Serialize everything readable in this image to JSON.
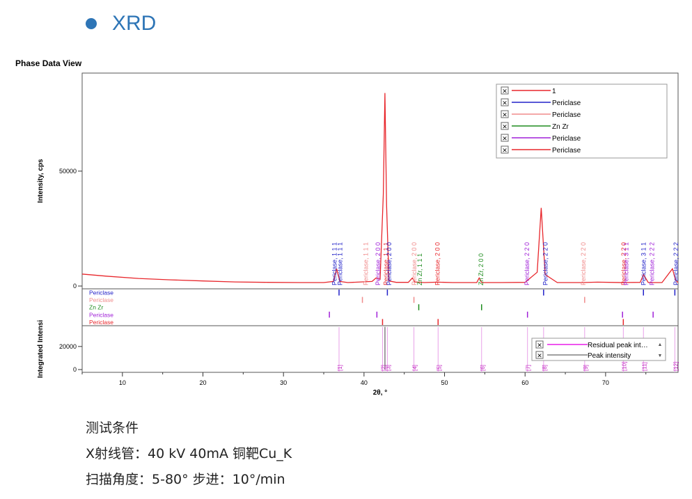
{
  "slide": {
    "bullet_title": "XRD"
  },
  "panel": {
    "title": "Phase Data View"
  },
  "conditions": {
    "heading": "测试条件",
    "line1": "X射线管：40 kV 40mA 铜靶Cu_K",
    "line2": "扫描角度：5-80° 步进：10°/min"
  },
  "chart_data": {
    "type": "line",
    "title": "",
    "xlabel": "2θ, °",
    "ylabel": "Intensity, cps",
    "xlim": [
      5,
      79
    ],
    "ylim": [
      0,
      86000
    ],
    "xticks": [
      10,
      20,
      30,
      40,
      50,
      60,
      70
    ],
    "yticks": [
      0,
      50000
    ],
    "grid": false,
    "legend_position": "top-right",
    "legend": [
      {
        "label": "1",
        "color": "#E8262B"
      },
      {
        "label": "Periclase",
        "color": "#2020C8"
      },
      {
        "label": "Periclase",
        "color": "#F08C8C"
      },
      {
        "label": "Zn Zr",
        "color": "#1E8C1E"
      },
      {
        "label": "Periclase",
        "color": "#A020D8"
      },
      {
        "label": "Periclase",
        "color": "#E8262B"
      }
    ],
    "series": [
      {
        "name": "1",
        "color": "#E8262B",
        "x": [
          5,
          8,
          12,
          16,
          20,
          24,
          28,
          32,
          35,
          36.2,
          36.6,
          37,
          38,
          41,
          41.5,
          42,
          42.4,
          42.6,
          42.8,
          43.1,
          44,
          45.5,
          46,
          46.3,
          47.5,
          49.2,
          51,
          54,
          54.3,
          54.6,
          57,
          60,
          61.5,
          62,
          62.5,
          64,
          67,
          69,
          72,
          74.3,
          74.7,
          75.3,
          77,
          78.3,
          78.7,
          79
        ],
        "y": [
          5200,
          4300,
          3300,
          2700,
          2200,
          1800,
          1600,
          1500,
          1500,
          2000,
          7500,
          2000,
          1500,
          2000,
          3500,
          3000,
          40000,
          84000,
          35000,
          2200,
          1600,
          1600,
          3500,
          1800,
          1500,
          1700,
          1500,
          1500,
          3500,
          1500,
          1500,
          1600,
          6000,
          34000,
          5000,
          1500,
          1500,
          1700,
          1500,
          1600,
          5000,
          1500,
          1500,
          7500,
          2500,
          1500
        ]
      }
    ],
    "peak_labels": [
      {
        "x": 36.6,
        "text": "Periclase, 1 1 1",
        "color": "#2020C8"
      },
      {
        "x": 37.3,
        "text": "Periclase, 1 1 1",
        "color": "#2020C8"
      },
      {
        "x": 40.5,
        "text": "Periclase, 1 1 1",
        "color": "#F08C8C"
      },
      {
        "x": 42.0,
        "text": "Periclase, 2 0 0",
        "color": "#A020D8"
      },
      {
        "x": 43.0,
        "text": "Periclase, 1 1 1",
        "color": "#E8262B"
      },
      {
        "x": 43.4,
        "text": "Periclase, 2 0 0",
        "color": "#2020C8"
      },
      {
        "x": 46.5,
        "text": "Periclase, 2 0 0",
        "color": "#F08C8C"
      },
      {
        "x": 47.2,
        "text": "Zn Zr, 1 1 1",
        "color": "#1E8C1E"
      },
      {
        "x": 49.4,
        "text": "Periclase, 2 0 0",
        "color": "#E8262B"
      },
      {
        "x": 54.8,
        "text": "Zn Zr, 2 0 0",
        "color": "#1E8C1E"
      },
      {
        "x": 60.5,
        "text": "Periclase, 2 2 0",
        "color": "#A020D8"
      },
      {
        "x": 62.8,
        "text": "Periclase, 2 2 0",
        "color": "#2020C8"
      },
      {
        "x": 67.5,
        "text": "Periclase, 2 2 0",
        "color": "#F08C8C"
      },
      {
        "x": 72.5,
        "text": "Periclase, 2 2 0",
        "color": "#E8262B"
      },
      {
        "x": 72.8,
        "text": "Periclase, 3 1 1",
        "color": "#A020D8"
      },
      {
        "x": 75.0,
        "text": "Periclase, 3 1 1",
        "color": "#2020C8"
      },
      {
        "x": 76.0,
        "text": "Periclase, 2 2 2",
        "color": "#A020D8"
      },
      {
        "x": 79.0,
        "text": "Periclase, 2 2 2",
        "color": "#2020C8"
      }
    ],
    "phase_sticks": [
      {
        "name": "Periclase",
        "color": "#2020C8",
        "x": [
          36.9,
          42.9,
          62.3,
          74.7,
          78.6
        ]
      },
      {
        "name": "Periclase",
        "color": "#F08C8C",
        "x": [
          39.8,
          46.2,
          67.4
        ]
      },
      {
        "name": "Zn Zr",
        "color": "#1E8C1E",
        "x": [
          46.8,
          54.6
        ]
      },
      {
        "name": "Periclase",
        "color": "#A020D8",
        "x": [
          35.7,
          41.6,
          60.3,
          72.1,
          75.9
        ]
      },
      {
        "name": "Periclase",
        "color": "#E8262B",
        "x": [
          42.3,
          49.2,
          72.2
        ]
      }
    ],
    "lower_panel": {
      "ylabel": "Integrated Intensi",
      "yticks": [
        0,
        20000
      ],
      "ylim": [
        0,
        38000
      ],
      "legend": [
        {
          "label": "Residual peak int…",
          "color": "#E81EE8"
        },
        {
          "label": "Peak intensity",
          "color": "#808080"
        }
      ],
      "bars": [
        {
          "x": 42.6,
          "value": 37000,
          "color": "#808080"
        }
      ],
      "markers": [
        {
          "x": 36.9,
          "label": "[1]"
        },
        {
          "x": 42.3,
          "label": "[2]"
        },
        {
          "x": 42.9,
          "label": "[3]"
        },
        {
          "x": 46.2,
          "label": "[4]"
        },
        {
          "x": 49.2,
          "label": "[5]"
        },
        {
          "x": 54.6,
          "label": "[6]"
        },
        {
          "x": 60.3,
          "label": "[7]"
        },
        {
          "x": 62.3,
          "label": "[8]"
        },
        {
          "x": 67.4,
          "label": "[9]"
        },
        {
          "x": 72.2,
          "label": "[10]"
        },
        {
          "x": 74.7,
          "label": "[11]"
        },
        {
          "x": 78.6,
          "label": "[12]"
        }
      ]
    }
  }
}
